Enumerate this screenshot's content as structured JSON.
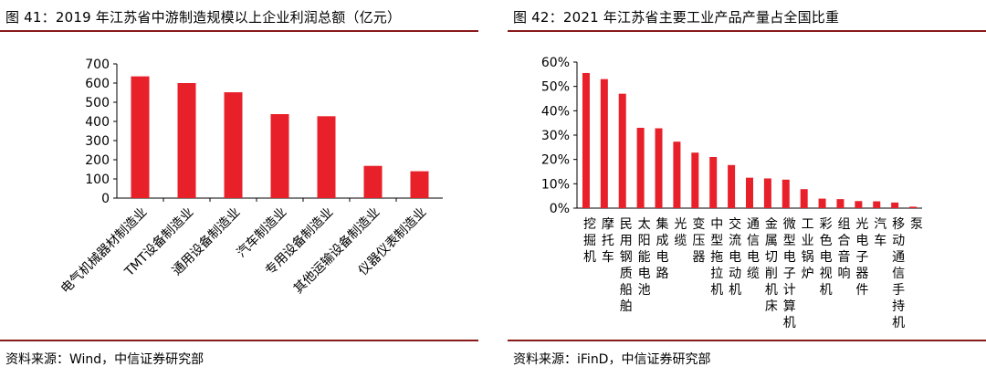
{
  "left": {
    "title": "图 41：2019 年江苏省中游制造规模以上企业利润总额（亿元）",
    "source": "资料来源：Wind，中信证券研究部"
  },
  "right": {
    "title": "图 42：2021 年江苏省主要工业产品产量占全国比重",
    "source": "资料来源：iFinD，中信证券研究部"
  },
  "chart_data": [
    {
      "type": "bar",
      "title": "图 41：2019 年江苏省中游制造规模以上企业利润总额（亿元）",
      "categories": [
        "电气机械器材制造业",
        "TMT设备制造业",
        "通用设备制造业",
        "汽车制造业",
        "专用设备制造业",
        "其他运输设备制造业",
        "仪器仪表制造业"
      ],
      "values": [
        635,
        600,
        552,
        438,
        427,
        168,
        140
      ],
      "ylim": [
        0,
        700
      ],
      "yticks": [
        "0",
        "100",
        "200",
        "300",
        "400",
        "500",
        "600",
        "700"
      ],
      "color": "#e8202a",
      "grid": false,
      "legend": "none"
    },
    {
      "type": "bar",
      "title": "图 42：2021 年江苏省主要工业产品产量占全国比重",
      "categories": [
        "挖掘机",
        "摩托车",
        "民用钢质船舶",
        "太阳能电池",
        "集成电路",
        "光缆",
        "变压器",
        "中型拖拉机",
        "交流电动机",
        "通信电缆",
        "金属切削机床",
        "微型电子计算机",
        "工业锅炉",
        "彩色电视机",
        "组合音响",
        "光电子器件",
        "汽车",
        "移动通信手持机",
        "泵"
      ],
      "values": [
        55.5,
        53,
        47,
        33,
        32.8,
        27.3,
        22.8,
        21,
        17.7,
        12.5,
        12.2,
        11.7,
        7.8,
        3.9,
        3.7,
        2.9,
        2.8,
        2.3,
        0.6
      ],
      "ylim": [
        0,
        60
      ],
      "yticks": [
        "0%",
        "10%",
        "20%",
        "30%",
        "40%",
        "50%",
        "60%"
      ],
      "color": "#e8202a",
      "grid": false,
      "legend": "none"
    }
  ]
}
